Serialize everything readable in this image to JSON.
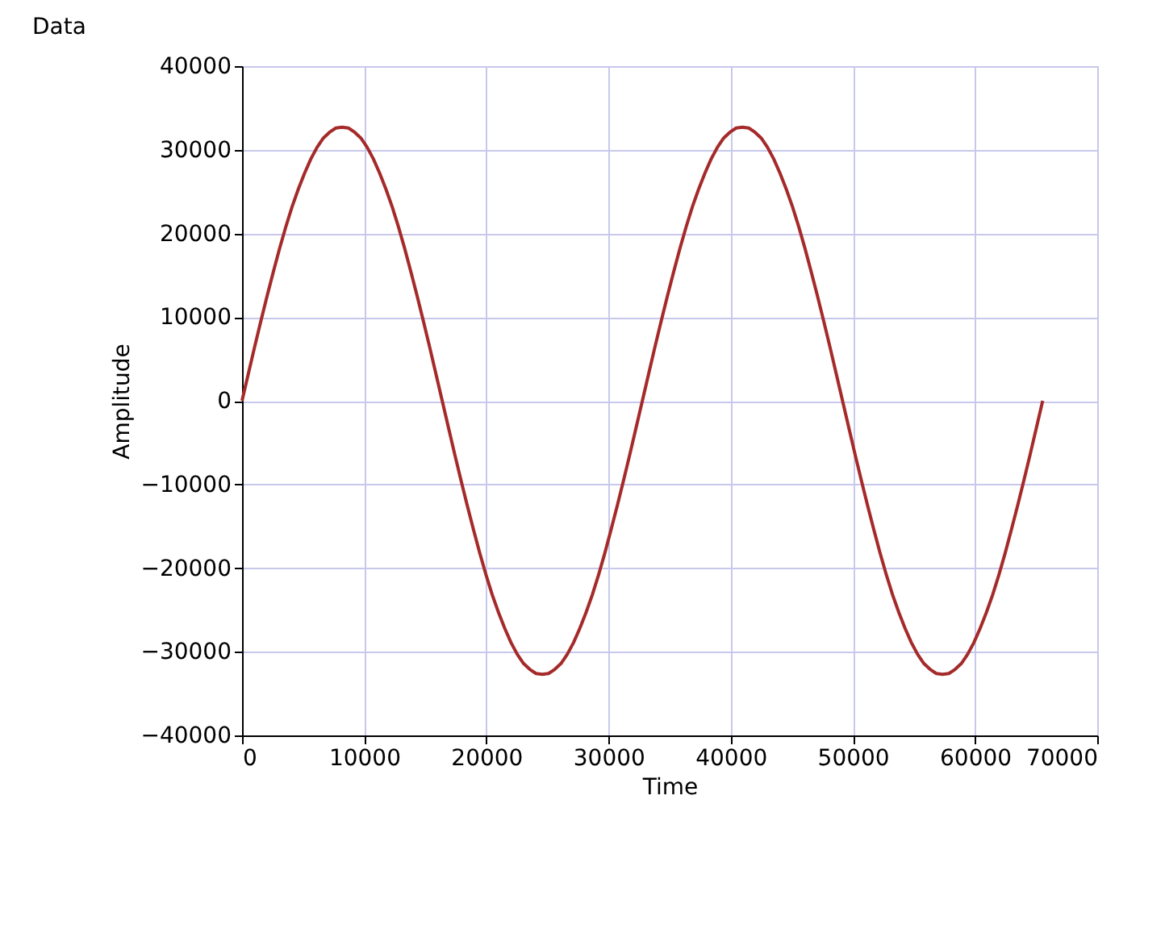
{
  "chart_data": {
    "type": "line",
    "title": "Data",
    "xlabel": "Time",
    "ylabel": "Amplitude",
    "x": [
      0,
      512,
      1024,
      1536,
      2048,
      2560,
      3072,
      3584,
      4096,
      4608,
      5120,
      5632,
      6144,
      6656,
      7168,
      7680,
      8192,
      8704,
      9216,
      9728,
      10240,
      10752,
      11264,
      11776,
      12288,
      12800,
      13312,
      13824,
      14336,
      14848,
      15360,
      15872,
      16384,
      16896,
      17408,
      17920,
      18432,
      18944,
      19456,
      19968,
      20480,
      20992,
      21504,
      22016,
      22528,
      23040,
      23552,
      24064,
      24576,
      25088,
      25600,
      26112,
      26624,
      27136,
      27648,
      28160,
      28672,
      29184,
      29696,
      30208,
      30720,
      31232,
      31744,
      32256,
      32768,
      33280,
      33792,
      34304,
      34816,
      35328,
      35840,
      36352,
      36864,
      37376,
      37888,
      38400,
      38912,
      39424,
      39936,
      40448,
      40960,
      41472,
      41984,
      42496,
      43008,
      43520,
      44032,
      44544,
      45056,
      45568,
      46080,
      46592,
      47104,
      47616,
      48128,
      48640,
      49152,
      49664,
      50176,
      50688,
      51200,
      51712,
      52224,
      52736,
      53248,
      53760,
      54272,
      54784,
      55296,
      55808,
      56320,
      56832,
      57344,
      57856,
      58368,
      58880,
      59392,
      59904,
      60416,
      60928,
      61440,
      61952,
      62464,
      62976,
      63488,
      64000,
      64512,
      65024,
      65536
    ],
    "series": [
      {
        "color": "#a52a2a",
        "values": [
          0,
          3200,
          6400,
          9500,
          12500,
          15400,
          18200,
          20800,
          23200,
          25300,
          27200,
          28900,
          30300,
          31400,
          32100,
          32600,
          32700,
          32600,
          32100,
          31400,
          30300,
          28900,
          27200,
          25300,
          23200,
          20800,
          18200,
          15400,
          12500,
          9500,
          6400,
          3200,
          0,
          -3200,
          -6400,
          -9500,
          -12500,
          -15400,
          -18200,
          -20800,
          -23200,
          -25300,
          -27200,
          -28900,
          -30300,
          -31400,
          -32100,
          -32600,
          -32700,
          -32600,
          -32100,
          -31400,
          -30300,
          -28900,
          -27200,
          -25300,
          -23200,
          -20800,
          -18200,
          -15400,
          -12500,
          -9500,
          -6400,
          -3200,
          0,
          3200,
          6400,
          9500,
          12500,
          15400,
          18200,
          20800,
          23200,
          25300,
          27200,
          28900,
          30300,
          31400,
          32100,
          32600,
          32700,
          32600,
          32100,
          31400,
          30300,
          28900,
          27200,
          25300,
          23200,
          20800,
          18200,
          15400,
          12500,
          9500,
          6400,
          3200,
          0,
          -3200,
          -6400,
          -9500,
          -12500,
          -15400,
          -18200,
          -20800,
          -23200,
          -25300,
          -27200,
          -28900,
          -30300,
          -31400,
          -32100,
          -32600,
          -32700,
          -32600,
          -32100,
          -31400,
          -30300,
          -28900,
          -27200,
          -25300,
          -23200,
          -20800,
          -18200,
          -15400,
          -12500,
          -9500,
          -6400,
          -3200,
          0
        ]
      }
    ],
    "xlim": [
      0,
      70000
    ],
    "xticks": [
      0,
      10000,
      20000,
      30000,
      40000,
      50000,
      60000,
      70000
    ],
    "ylim": [
      -40000,
      40000
    ],
    "yticks": [
      -40000,
      -30000,
      -20000,
      -10000,
      0,
      10000,
      20000,
      30000,
      40000
    ],
    "grid": true,
    "marker": "none",
    "line_style": "solid"
  }
}
